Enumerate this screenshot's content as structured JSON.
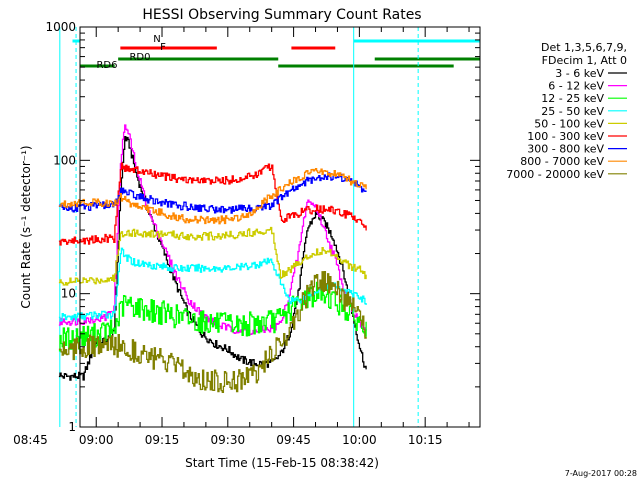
{
  "chart_data": {
    "type": "line",
    "title": "HESSI Observing Summary Count Rates",
    "xlabel": "Start Time (15-Feb-15 08:38:42)",
    "ylabel": "Count Rate (s⁻¹ detector⁻¹)",
    "yscale": "log",
    "ylim": [
      1,
      1000
    ],
    "xlim_minutes": [
      -3.7,
      87.5
    ],
    "x_ticks": [
      {
        "m": -15,
        "label": "08:45"
      },
      {
        "m": 0,
        "label": "09:00"
      },
      {
        "m": 15,
        "label": "09:15"
      },
      {
        "m": 30,
        "label": "09:30"
      },
      {
        "m": 45,
        "label": "09:45"
      },
      {
        "m": 60,
        "label": "10:00"
      },
      {
        "m": 75,
        "label": "10:15"
      }
    ],
    "y_ticks": [
      {
        "v": 1,
        "label": "1"
      },
      {
        "v": 10,
        "label": "10"
      },
      {
        "v": 100,
        "label": "100"
      },
      {
        "v": 1000,
        "label": "1000"
      }
    ],
    "legend": {
      "position": "right",
      "header": [
        "Det 1,3,5,6,7,9,",
        "FDecim 1, Att 0"
      ]
    },
    "series": [
      {
        "name": "3 - 6 keV",
        "color": "#000000",
        "x": [
          -8.5,
          -8,
          -5,
          -3,
          0,
          2,
          4,
          5.5,
          6.5,
          7.5,
          9,
          12,
          15,
          18,
          21,
          24,
          27,
          30,
          33,
          36,
          40,
          42,
          44,
          46,
          48,
          50,
          52,
          54,
          56,
          58,
          60,
          61,
          61.8
        ],
        "y": [
          2.5,
          2.4,
          2.4,
          2.4,
          4.5,
          4.4,
          5,
          60,
          150,
          130,
          80,
          40,
          22,
          12,
          7,
          5,
          4.2,
          3.8,
          3.2,
          3.0,
          3.0,
          3.5,
          5,
          10,
          30,
          40,
          34,
          26,
          16,
          8,
          4,
          3,
          2.5
        ]
      },
      {
        "name": "6 - 12 keV",
        "color": "#ff00ff",
        "x": [
          -8.5,
          -8,
          -5,
          -3,
          0,
          2,
          4,
          5.5,
          6.5,
          7.5,
          9,
          12,
          15,
          18,
          21,
          24,
          27,
          30,
          33,
          36,
          40,
          42,
          44,
          46,
          48,
          50,
          52,
          54,
          56,
          58,
          60,
          61,
          61.8
        ],
        "y": [
          6,
          6.2,
          6.2,
          6.3,
          6.5,
          6.6,
          8,
          100,
          185,
          150,
          90,
          40,
          24,
          14,
          9,
          7,
          6,
          5.5,
          5.3,
          5.2,
          5.5,
          6,
          10,
          20,
          50,
          45,
          30,
          20,
          12,
          8,
          6,
          5.5,
          5
        ]
      },
      {
        "name": "12 - 25 keV",
        "color": "#00ff00",
        "x": [
          -8.5,
          -8,
          -5,
          -3,
          0,
          2,
          4,
          5.5,
          6.5,
          7.5,
          9,
          12,
          15,
          18,
          21,
          24,
          27,
          30,
          33,
          36,
          40,
          42,
          44,
          46,
          48,
          50,
          52,
          54,
          56,
          58,
          60,
          61,
          61.8
        ],
        "y": [
          4.5,
          4.6,
          4.6,
          4.8,
          4.9,
          5.2,
          5.3,
          7.5,
          8.5,
          8.2,
          8,
          7.5,
          7.2,
          6.8,
          6.5,
          6.2,
          6,
          5.8,
          5.8,
          6,
          6.2,
          6.5,
          7.5,
          8.5,
          9.5,
          10,
          10,
          9,
          8,
          7,
          6,
          5.5,
          5
        ]
      },
      {
        "name": "25 - 50 keV",
        "color": "#00ffff",
        "x": [
          -8.5,
          -8,
          -5,
          -3,
          0,
          2,
          4,
          5.5,
          6.5,
          7.5,
          9,
          12,
          15,
          18,
          21,
          24,
          27,
          30,
          33,
          36,
          40,
          42,
          44,
          46,
          48,
          50,
          52,
          54,
          56,
          58,
          60,
          61,
          61.8
        ],
        "y": [
          6.5,
          6.6,
          6.7,
          6.8,
          6.9,
          7,
          7,
          21,
          19,
          18,
          17,
          16.5,
          16,
          15.5,
          15.5,
          15.5,
          15.5,
          15.5,
          15.8,
          16.5,
          17.5,
          12,
          9,
          9,
          9.5,
          10.5,
          11.5,
          11.5,
          11,
          10,
          9.5,
          9,
          8.5
        ]
      },
      {
        "name": "50 - 100 keV",
        "color": "#cccc00",
        "x": [
          -8.5,
          -8,
          -5,
          -3,
          0,
          2,
          4,
          5.5,
          6.5,
          7.5,
          9,
          12,
          15,
          18,
          21,
          24,
          27,
          30,
          33,
          36,
          40,
          42,
          44,
          46,
          48,
          50,
          52,
          54,
          56,
          58,
          60,
          61,
          61.8
        ],
        "y": [
          12,
          12.2,
          12.3,
          12.5,
          12.6,
          12.8,
          13,
          28,
          29,
          29,
          28.5,
          28,
          28,
          27.5,
          27,
          27,
          27,
          27.5,
          28,
          29,
          30,
          14,
          15,
          17,
          19,
          20.5,
          21,
          20,
          18,
          16,
          15,
          14,
          13
        ]
      },
      {
        "name": "100 - 300 keV",
        "color": "#ff0000",
        "x": [
          -8.5,
          -8,
          -5,
          -3,
          0,
          2,
          4,
          5.5,
          6.5,
          7.5,
          9,
          12,
          15,
          18,
          21,
          24,
          27,
          30,
          33,
          36,
          40,
          42,
          44,
          46,
          48,
          50,
          52,
          54,
          56,
          58,
          60,
          61,
          61.8
        ],
        "y": [
          24,
          24.5,
          25,
          25,
          25.5,
          26,
          26,
          90,
          88,
          86,
          84,
          80,
          76,
          73,
          71,
          70,
          70,
          71,
          73,
          77,
          92,
          36,
          38,
          40,
          42,
          43,
          43,
          42,
          40,
          38,
          36,
          33,
          30
        ]
      },
      {
        "name": "300 - 800 keV",
        "color": "#0000ff",
        "x": [
          -8.5,
          -8,
          -5,
          -3,
          0,
          2,
          4,
          5.5,
          6.5,
          7.5,
          9,
          12,
          15,
          18,
          21,
          24,
          27,
          30,
          33,
          36,
          40,
          42,
          44,
          46,
          48,
          50,
          52,
          54,
          56,
          58,
          60,
          61,
          61.8
        ],
        "y": [
          44,
          44,
          44,
          45,
          45,
          46,
          46,
          59,
          58,
          56,
          54,
          51,
          48,
          46,
          45,
          44,
          43,
          43,
          43,
          44,
          46,
          52,
          58,
          64,
          70,
          74,
          76,
          76,
          74,
          70,
          64,
          60,
          55
        ]
      },
      {
        "name": "800 - 7000 keV",
        "color": "#ff8800",
        "x": [
          -8.5,
          -8,
          -5,
          -3,
          0,
          2,
          4,
          5.5,
          6.5,
          7.5,
          9,
          12,
          15,
          18,
          21,
          24,
          27,
          30,
          33,
          36,
          40,
          42,
          44,
          46,
          48,
          50,
          52,
          54,
          56,
          58,
          60,
          61,
          61.8
        ],
        "y": [
          46,
          47,
          48,
          48.5,
          48.5,
          48,
          47,
          53,
          51,
          48,
          46,
          43,
          40,
          37.5,
          36,
          35.5,
          35.5,
          36,
          38,
          42,
          55,
          60,
          67,
          74,
          79,
          82,
          82,
          80,
          76,
          70,
          65,
          62,
          60
        ]
      },
      {
        "name": "7000 - 20000 keV",
        "color": "#808000",
        "x": [
          -8.5,
          -8,
          -5,
          -3,
          0,
          2,
          4,
          5.5,
          6.5,
          7.5,
          9,
          12,
          15,
          18,
          21,
          24,
          27,
          30,
          33,
          36,
          40,
          42,
          44,
          46,
          48,
          50,
          52,
          54,
          56,
          58,
          60,
          61,
          61.8
        ],
        "y": [
          3.8,
          3.9,
          3.9,
          4.0,
          4.0,
          4.0,
          4.1,
          4.0,
          4.0,
          3.9,
          3.7,
          3.4,
          3.1,
          2.8,
          2.5,
          2.3,
          2.2,
          2.2,
          2.3,
          2.5,
          3.5,
          4.2,
          5.5,
          7,
          10,
          12,
          12,
          11,
          9.5,
          8,
          6.5,
          5.5,
          5
        ]
      }
    ],
    "cyan_vlines_solid": [
      -8.3,
      58.7
    ],
    "cyan_vlines_dashed": [
      -4.6,
      73.4
    ],
    "flag_bars": [
      {
        "label": "N",
        "color": "#00ffff",
        "level": 3,
        "segments": [
          [
            -3.7,
            -4.5
          ],
          [
            58.7,
            87.5
          ]
        ]
      },
      {
        "label": "F",
        "color": "#ff0000",
        "level": 2,
        "segments": [
          [
            5.5,
            27.5
          ],
          [
            44.5,
            54.5
          ]
        ]
      },
      {
        "label": "RD0",
        "color": "#008000",
        "level": 1,
        "segments": [
          [
            5,
            41.5
          ],
          [
            63.5,
            87.5
          ]
        ]
      },
      {
        "label": "RD6",
        "color": "#008000",
        "level": 0,
        "segments": [
          [
            -3.7,
            4.2
          ],
          [
            41.5,
            81.5
          ]
        ]
      }
    ],
    "grid": false
  },
  "footer": {
    "date_stamp": "7-Aug-2017 00:28"
  }
}
